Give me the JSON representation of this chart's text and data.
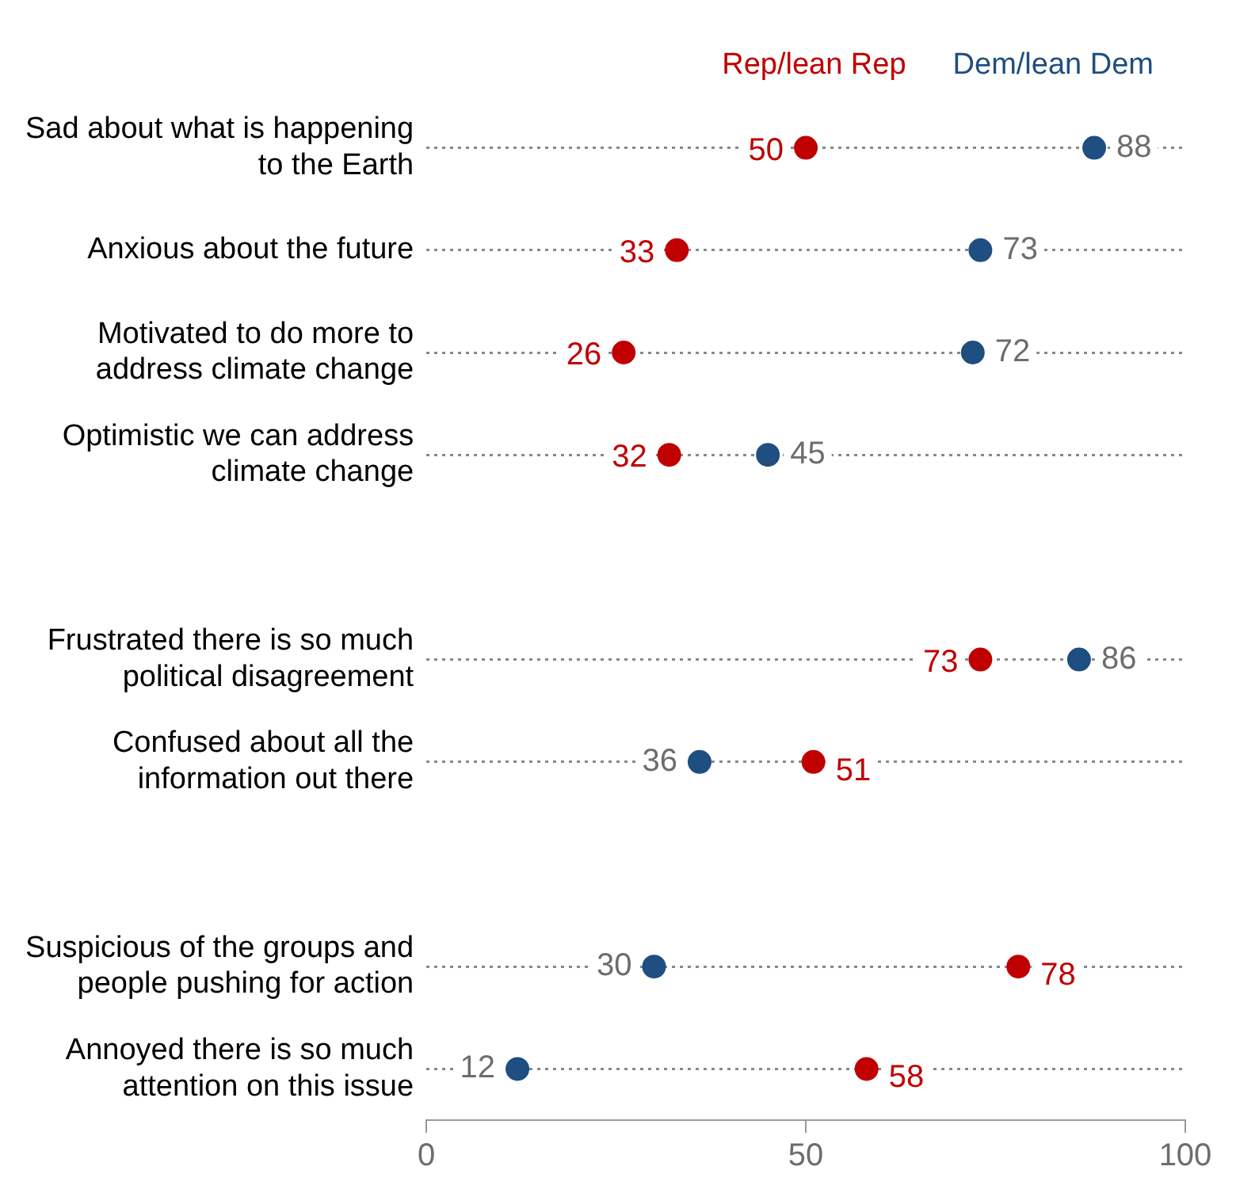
{
  "chart_data": {
    "type": "scatter",
    "orientation": "horizontal",
    "categories": [
      "Sad about what is happening to the Earth",
      "Anxious about the future",
      "Motivated to do more to address climate change",
      "Optimistic we can address climate change",
      null,
      "Frustrated there is so much political disagreement",
      "Confused about all the information out there",
      null,
      "Suspicious of the groups and people pushing for action",
      "Annoyed there is so much attention on this issue"
    ],
    "series": [
      {
        "name": "Rep/lean Rep",
        "color": "#c00000",
        "values": [
          50,
          33,
          26,
          32,
          null,
          73,
          51,
          null,
          78,
          58
        ]
      },
      {
        "name": "Dem/lean Dem",
        "color": "#1f4e80",
        "values": [
          88,
          73,
          72,
          45,
          null,
          86,
          36,
          null,
          30,
          12
        ]
      }
    ],
    "xlim": [
      0,
      100
    ],
    "xticks": [
      0,
      50,
      100
    ],
    "grid": "y",
    "legend": "top right",
    "marker": "circle",
    "data_labels": true
  }
}
